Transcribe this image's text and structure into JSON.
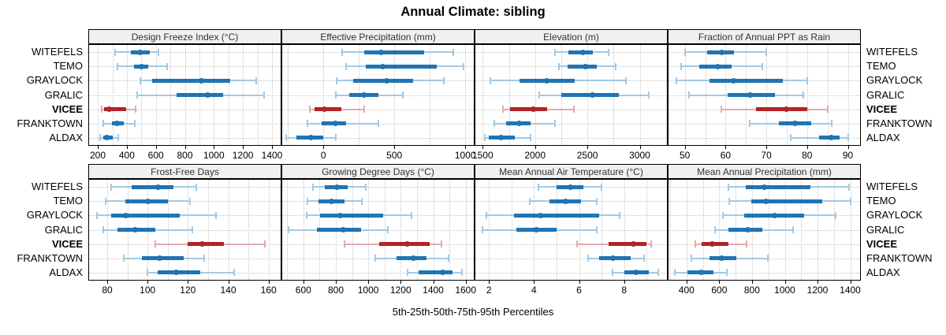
{
  "title": "Annual Climate: sibling",
  "caption": "5th-25th-50th-75th-95th Percentiles",
  "percentile_labels": [
    "5th",
    "25th",
    "50th",
    "75th",
    "95th"
  ],
  "stations": [
    "WITEFELS",
    "TEMO",
    "GRAYLOCK",
    "GRALIC",
    "VICEE",
    "FRANKTOWN",
    "ALDAX"
  ],
  "highlight_station": "VICEE",
  "colors": {
    "dark_blue": "#1f74b4",
    "light_blue": "#a3c9e3",
    "dark_red": "#b22428",
    "light_red": "#e2abac",
    "strip_bg": "#f0f0f0",
    "grid": "#c6c6c6",
    "border": "#000000"
  },
  "chart_data": {
    "type": "dotplot-intervals",
    "note": "Each station row shows 5th-25th-50th-75th-95th percentile intervals; values arrays follow stations order, each entry is [p5,p25,p50,p75,p95]",
    "layout": {
      "rows": 2,
      "cols": 4,
      "grid": "dotted",
      "station_labels": "both-sides"
    },
    "panels": [
      {
        "title": "Design Freeze Index (°C)",
        "axis": {
          "min": 140,
          "max": 1460,
          "ticks": [
            200,
            400,
            600,
            800,
            1000,
            1200,
            1400
          ],
          "minor_step": 100
        },
        "values": [
          [
            320,
            430,
            490,
            560,
            620
          ],
          [
            335,
            450,
            500,
            550,
            675
          ],
          [
            495,
            575,
            915,
            1115,
            1290
          ],
          [
            470,
            740,
            955,
            1065,
            1345
          ],
          [
            225,
            245,
            280,
            395,
            460
          ],
          [
            240,
            295,
            335,
            380,
            455
          ],
          [
            215,
            235,
            260,
            305,
            340
          ]
        ]
      },
      {
        "title": "Effective Precipitation (mm)",
        "axis": {
          "min": -290,
          "max": 1060,
          "ticks": [
            0,
            500,
            1000
          ],
          "minor_step": 250
        },
        "values": [
          [
            130,
            285,
            405,
            710,
            915
          ],
          [
            160,
            300,
            420,
            800,
            990
          ],
          [
            95,
            210,
            445,
            630,
            850
          ],
          [
            85,
            180,
            285,
            390,
            560
          ],
          [
            -95,
            -60,
            5,
            125,
            285
          ],
          [
            -115,
            -10,
            85,
            160,
            385
          ],
          [
            -265,
            -190,
            -85,
            0,
            85
          ]
        ]
      },
      {
        "title": "Elevation (m)",
        "axis": {
          "min": 1430,
          "max": 3260,
          "ticks": [
            1500,
            2000,
            2500,
            3000
          ],
          "minor_step": 250
        },
        "values": [
          [
            2190,
            2320,
            2460,
            2550,
            2700
          ],
          [
            2230,
            2310,
            2480,
            2590,
            2770
          ],
          [
            1570,
            1850,
            2110,
            2380,
            2870
          ],
          [
            2040,
            2250,
            2545,
            2800,
            3090
          ],
          [
            1695,
            1760,
            1985,
            2115,
            2370
          ],
          [
            1610,
            1720,
            1850,
            1955,
            2190
          ],
          [
            1520,
            1555,
            1675,
            1805,
            1960
          ]
        ]
      },
      {
        "title": "Fraction of Annual PPT as Rain",
        "axis": {
          "min": 46,
          "max": 93,
          "ticks": [
            50,
            60,
            70,
            80,
            90
          ],
          "minor_step": 5
        },
        "values": [
          [
            50,
            55.5,
            59,
            62,
            70
          ],
          [
            49,
            53.5,
            58,
            61.5,
            69
          ],
          [
            48,
            56,
            62,
            74,
            80
          ],
          [
            51,
            60.5,
            66,
            72,
            79
          ],
          [
            59,
            67.5,
            75,
            80,
            85
          ],
          [
            66,
            73,
            77,
            81,
            86
          ],
          [
            76,
            83,
            86,
            88,
            90
          ]
        ]
      },
      {
        "title": "Frost-Free Days",
        "axis": {
          "min": 71,
          "max": 166,
          "ticks": [
            80,
            100,
            120,
            140,
            160
          ],
          "minor_step": 10
        },
        "values": [
          [
            82,
            92,
            105,
            113,
            124
          ],
          [
            79,
            89,
            100,
            110,
            121
          ],
          [
            75,
            82,
            89,
            116,
            134
          ],
          [
            78,
            85,
            94,
            104,
            122
          ],
          [
            104,
            120,
            127,
            138,
            158
          ],
          [
            88,
            97,
            106,
            118,
            128
          ],
          [
            100,
            105,
            114,
            126,
            143
          ]
        ]
      },
      {
        "title": "Growing Degree Days (°C)",
        "axis": {
          "min": 470,
          "max": 1650,
          "ticks": [
            600,
            800,
            1000,
            1200,
            1400,
            1600
          ],
          "minor_step": 100
        },
        "values": [
          [
            660,
            730,
            805,
            875,
            985
          ],
          [
            625,
            695,
            775,
            855,
            960
          ],
          [
            620,
            705,
            825,
            1090,
            1265
          ],
          [
            510,
            685,
            845,
            955,
            1120
          ],
          [
            855,
            1065,
            1240,
            1380,
            1450
          ],
          [
            1045,
            1175,
            1280,
            1360,
            1495
          ],
          [
            1240,
            1310,
            1460,
            1520,
            1575
          ]
        ]
      },
      {
        "title": "Mean Annual Air Temperature (°C)",
        "axis": {
          "min": 1.4,
          "max": 9.9,
          "ticks": [
            2,
            4,
            6,
            8
          ],
          "minor_step": 1
        },
        "values": [
          [
            4.2,
            5.0,
            5.6,
            6.2,
            7.0
          ],
          [
            3.8,
            4.7,
            5.4,
            6.1,
            6.8
          ],
          [
            1.9,
            3.1,
            4.3,
            6.9,
            7.8
          ],
          [
            1.7,
            3.2,
            4.1,
            5.0,
            6.8
          ],
          [
            5.9,
            7.3,
            8.4,
            9.0,
            9.2
          ],
          [
            6.4,
            6.9,
            7.5,
            8.3,
            8.9
          ],
          [
            7.5,
            8.0,
            8.5,
            9.1,
            9.5
          ]
        ]
      },
      {
        "title": "Mean Annual Precipitation (mm)",
        "axis": {
          "min": 290,
          "max": 1460,
          "ticks": [
            400,
            600,
            800,
            1000,
            1200,
            1400
          ],
          "minor_step": 100
        },
        "values": [
          [
            655,
            760,
            875,
            1155,
            1390
          ],
          [
            660,
            795,
            885,
            1230,
            1400
          ],
          [
            620,
            750,
            935,
            1120,
            1310
          ],
          [
            575,
            655,
            775,
            865,
            1050
          ],
          [
            455,
            490,
            555,
            655,
            765
          ],
          [
            430,
            540,
            615,
            705,
            895
          ],
          [
            330,
            405,
            490,
            565,
            645
          ]
        ]
      }
    ]
  }
}
